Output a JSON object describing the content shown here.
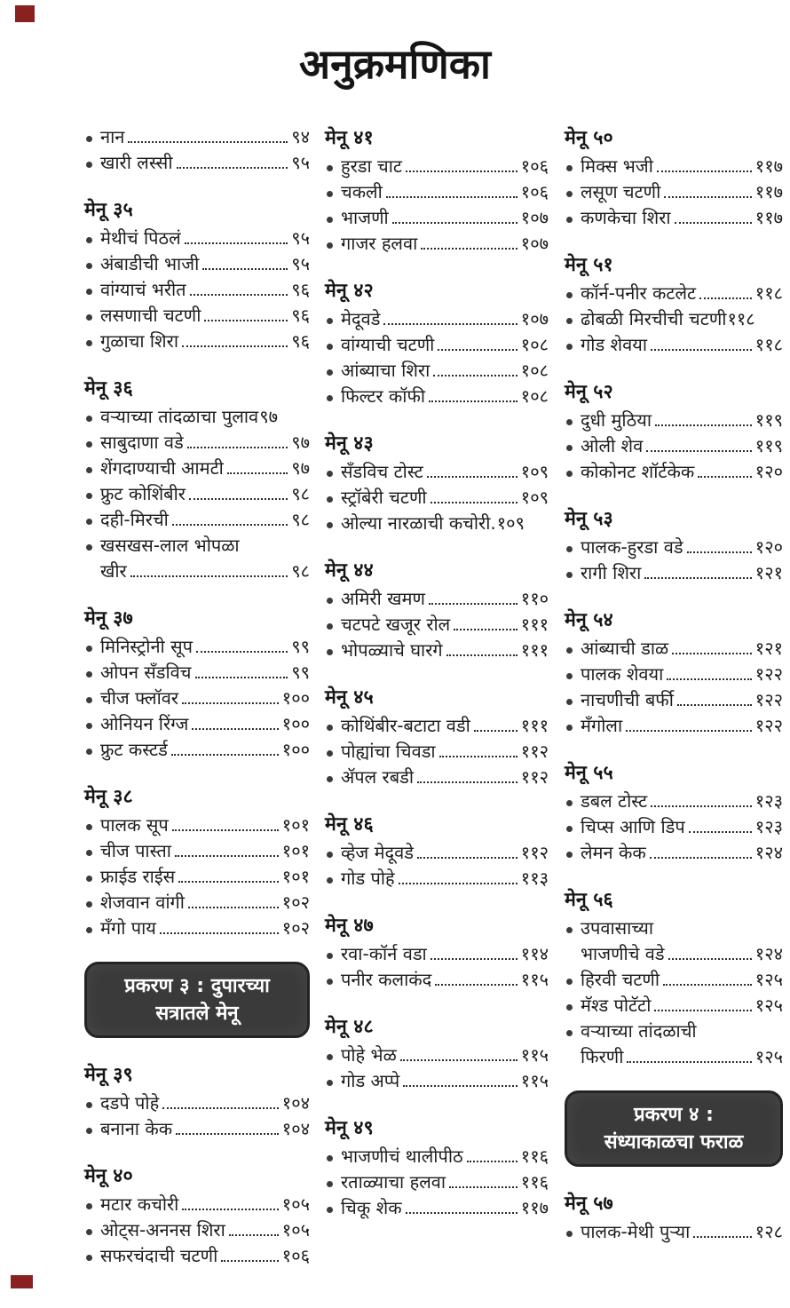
{
  "page": {
    "title": "अनुक्रमणिका"
  },
  "decor": {
    "mark_color": "#8a2121"
  },
  "columns": [
    {
      "blocks": [
        {
          "type": "items",
          "header": null,
          "items": [
            {
              "label": "नान",
              "page": "९४"
            },
            {
              "label": "खारी लस्सी",
              "page": "९५"
            }
          ]
        },
        {
          "type": "items",
          "header": "मेनू ३५",
          "items": [
            {
              "label": "मेथीचं पिठलं",
              "page": "९५"
            },
            {
              "label": "अंबाडीची भाजी",
              "page": "९५"
            },
            {
              "label": "वांग्याचं भरीत",
              "page": "९६"
            },
            {
              "label": "लसणाची चटणी",
              "page": "९६"
            },
            {
              "label": "गुळाचा शिरा",
              "page": "९६"
            }
          ]
        },
        {
          "type": "items",
          "header": "मेनू ३६",
          "items": [
            {
              "label": "वऱ्याच्या तांदळाचा पुलाव",
              "page": "९७",
              "no_leader": true
            },
            {
              "label": "साबुदाणा वडे",
              "page": "९७"
            },
            {
              "label": "शेंगदाण्याची आमटी",
              "page": "९७"
            },
            {
              "label": "फ्रुट कोशिंबीर",
              "page": "९८"
            },
            {
              "label": "दही-मिरची",
              "page": "९८"
            },
            {
              "label": "खसखस-लाल भोपळा",
              "label2": "खीर",
              "page": "९८"
            }
          ]
        },
        {
          "type": "items",
          "header": "मेनू ३७",
          "items": [
            {
              "label": "मिनिस्ट्रोनी सूप",
              "page": "९९"
            },
            {
              "label": "ओपन सँडविच",
              "page": "९९"
            },
            {
              "label": "चीज फ्लॉवर",
              "page": "१००"
            },
            {
              "label": "ओनियन रिंग्ज",
              "page": "१००"
            },
            {
              "label": "फ्रुट कस्टर्ड",
              "page": "१००"
            }
          ]
        },
        {
          "type": "items",
          "header": "मेनू ३८",
          "items": [
            {
              "label": "पालक सूप",
              "page": "१०१"
            },
            {
              "label": "चीज पास्ता",
              "page": "१०१"
            },
            {
              "label": "फ्राईड राईस",
              "page": "१०१"
            },
            {
              "label": "शेजवान वांगी",
              "page": "१०२"
            },
            {
              "label": "मँगो पाय",
              "page": "१०२"
            }
          ]
        },
        {
          "type": "chapter",
          "lines": [
            "प्रकरण ३ : दुपारच्या",
            "सत्रातले मेनू"
          ]
        },
        {
          "type": "items",
          "header": "मेनू ३९",
          "items": [
            {
              "label": "दडपे पोहे",
              "page": "१०४"
            },
            {
              "label": "बनाना केक",
              "page": "१०४"
            }
          ]
        },
        {
          "type": "items",
          "header": "मेनू ४०",
          "items": [
            {
              "label": "मटार कचोरी",
              "page": "१०५"
            },
            {
              "label": "ओट्स-अननस शिरा",
              "page": "१०५"
            },
            {
              "label": "सफरचंदाची चटणी",
              "page": "१०६"
            }
          ]
        }
      ]
    },
    {
      "blocks": [
        {
          "type": "items",
          "header": "मेनू ४१",
          "items": [
            {
              "label": "हुरडा चाट",
              "page": "१०६"
            },
            {
              "label": "चकली",
              "page": "१०६"
            },
            {
              "label": "भाजणी",
              "page": "१०७"
            },
            {
              "label": "गाजर हलवा",
              "page": "१०७"
            }
          ]
        },
        {
          "type": "items",
          "header": "मेनू ४२",
          "items": [
            {
              "label": "मेदूवडे",
              "page": "१०७"
            },
            {
              "label": "वांग्याची चटणी",
              "page": "१०८"
            },
            {
              "label": "आंब्याचा शिरा",
              "page": "१०८"
            },
            {
              "label": "फिल्टर कॉफी",
              "page": "१०८"
            }
          ]
        },
        {
          "type": "items",
          "header": "मेनू ४३",
          "items": [
            {
              "label": "सँडविच टोस्ट",
              "page": "१०९"
            },
            {
              "label": "स्ट्रॉबेरी चटणी",
              "page": "१०९"
            },
            {
              "label": "ओल्या नारळाची कचोरी.",
              "page": "१०९",
              "no_leader": true
            }
          ]
        },
        {
          "type": "items",
          "header": "मेनू ४४",
          "items": [
            {
              "label": "अमिरी खमण",
              "page": "११०"
            },
            {
              "label": "चटपटे खजूर रोल",
              "page": "१११"
            },
            {
              "label": "भोपळ्याचे घारगे",
              "page": "१११"
            }
          ]
        },
        {
          "type": "items",
          "header": "मेनू ४५",
          "items": [
            {
              "label": "कोथिंबीर-बटाटा वडी",
              "page": "१११"
            },
            {
              "label": "पोह्यांचा चिवडा",
              "page": "११२"
            },
            {
              "label": "ॲपल रबडी",
              "page": "११२"
            }
          ]
        },
        {
          "type": "items",
          "header": "मेनू ४६",
          "items": [
            {
              "label": "व्हेज मेदूवडे",
              "page": "११२"
            },
            {
              "label": "गोड पोहे",
              "page": "११३"
            }
          ]
        },
        {
          "type": "items",
          "header": "मेनू ४७",
          "items": [
            {
              "label": "रवा-कॉर्न वडा",
              "page": "११४"
            },
            {
              "label": "पनीर कलाकंद",
              "page": "११५"
            }
          ]
        },
        {
          "type": "items",
          "header": "मेनू ४८",
          "items": [
            {
              "label": "पोहे भेळ",
              "page": "११५"
            },
            {
              "label": "गोड अप्पे",
              "page": "११५"
            }
          ]
        },
        {
          "type": "items",
          "header": "मेनू ४९",
          "items": [
            {
              "label": "भाजणीचं थालीपीठ",
              "page": "११६"
            },
            {
              "label": "रताळ्याचा हलवा",
              "page": "११६"
            },
            {
              "label": "चिकू शेक",
              "page": "११७"
            }
          ]
        }
      ]
    },
    {
      "blocks": [
        {
          "type": "items",
          "header": "मेनू ५०",
          "items": [
            {
              "label": "मिक्स भजी",
              "page": "११७"
            },
            {
              "label": "लसूण चटणी",
              "page": "११७"
            },
            {
              "label": "कणकेचा शिरा",
              "page": "११७"
            }
          ]
        },
        {
          "type": "items",
          "header": "मेनू ५१",
          "items": [
            {
              "label": "कॉर्न-पनीर कटलेट",
              "page": "११८"
            },
            {
              "label": "ढोबळी मिरचीची चटणी",
              "page": "११८",
              "no_leader": true
            },
            {
              "label": "गोड शेवया",
              "page": "११८"
            }
          ]
        },
        {
          "type": "items",
          "header": "मेनू ५२",
          "items": [
            {
              "label": "दुधी मुठिया",
              "page": "११९"
            },
            {
              "label": "ओली शेव",
              "page": "११९"
            },
            {
              "label": "कोकोनट शॉर्टकेक",
              "page": "१२०"
            }
          ]
        },
        {
          "type": "items",
          "header": "मेनू ५३",
          "items": [
            {
              "label": "पालक-हुरडा वडे",
              "page": "१२०"
            },
            {
              "label": "रागी शिरा",
              "page": "१२१"
            }
          ]
        },
        {
          "type": "items",
          "header": "मेनू ५४",
          "items": [
            {
              "label": "आंब्याची डाळ",
              "page": "१२१"
            },
            {
              "label": "पालक शेवया",
              "page": "१२२"
            },
            {
              "label": "नाचणीची बर्फी",
              "page": "१२२"
            },
            {
              "label": "मँगोला",
              "page": "१२२"
            }
          ]
        },
        {
          "type": "items",
          "header": "मेनू ५५",
          "items": [
            {
              "label": "डबल टोस्ट",
              "page": "१२३"
            },
            {
              "label": "चिप्स आणि डिप",
              "page": "१२३"
            },
            {
              "label": "लेमन केक",
              "page": "१२४"
            }
          ]
        },
        {
          "type": "items",
          "header": "मेनू ५६",
          "items": [
            {
              "label": "उपवासाच्या",
              "label2": "भाजणीचे वडे",
              "page": "१२४"
            },
            {
              "label": "हिरवी चटणी",
              "page": "१२५"
            },
            {
              "label": "मॅश्ड पोटॅटो",
              "page": "१२५"
            },
            {
              "label": "वऱ्याच्या तांदळाची",
              "label2": "फिरणी",
              "page": "१२५"
            }
          ]
        },
        {
          "type": "chapter",
          "lines": [
            "प्रकरण ४ :",
            "संध्याकाळचा फराळ"
          ]
        },
        {
          "type": "items",
          "header": "मेनू ५७",
          "items": [
            {
              "label": "पालक-मेथी पुऱ्या",
              "page": "१२८"
            }
          ]
        }
      ]
    }
  ]
}
